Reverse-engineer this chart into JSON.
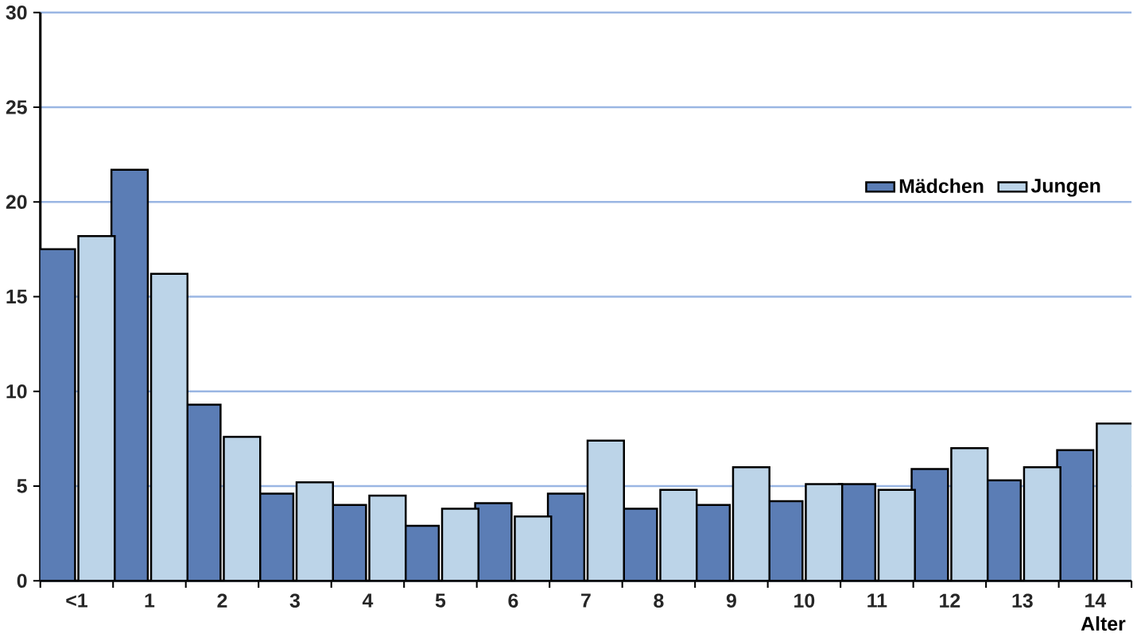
{
  "chart_data": {
    "type": "bar",
    "xlabel": "Alter",
    "categories": [
      "<1",
      "1",
      "2",
      "3",
      "4",
      "5",
      "6",
      "7",
      "8",
      "9",
      "10",
      "11",
      "12",
      "13",
      "14"
    ],
    "series": [
      {
        "name": "Mädchen",
        "color": "#5b7db5",
        "values": [
          17.5,
          21.7,
          9.3,
          4.6,
          4.0,
          2.9,
          4.1,
          4.6,
          3.8,
          4.0,
          4.2,
          5.1,
          5.9,
          5.3,
          6.9
        ]
      },
      {
        "name": "Jungen",
        "color": "#bcd4e8",
        "values": [
          18.2,
          16.2,
          7.6,
          5.2,
          4.5,
          3.8,
          3.4,
          7.4,
          4.8,
          6.0,
          5.1,
          4.8,
          7.0,
          6.0,
          8.3
        ]
      }
    ],
    "ylim": [
      0,
      30
    ],
    "yticks": [
      0,
      5,
      10,
      15,
      20,
      25,
      30
    ],
    "grid": "y",
    "legend": "top right"
  }
}
